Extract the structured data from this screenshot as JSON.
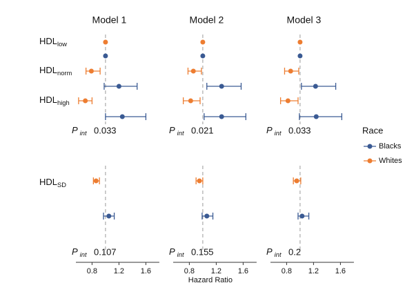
{
  "chart_data": {
    "type": "forest",
    "x_label": "Hazard Ratio",
    "legend_title": "Race",
    "xlim": [
      0.56,
      1.8
    ],
    "xticks": [
      0.8,
      1.2,
      1.6
    ],
    "reference": 1,
    "p_label": {
      "main": "P",
      "sub": "int"
    },
    "groups": [
      {
        "main": "HDL",
        "sub": "low"
      },
      {
        "main": "HDL",
        "sub": "norm"
      },
      {
        "main": "HDL",
        "sub": "high"
      },
      {
        "main": "HDL",
        "sub": "SD"
      }
    ],
    "series": [
      {
        "name": "Blacks",
        "color": "#3a5a93"
      },
      {
        "name": "Whites",
        "color": "#ed7d31"
      }
    ],
    "panels": [
      {
        "title": "Model 1",
        "p_int": [
          0.033,
          0.107
        ],
        "series": [
          {
            "values": [
              1,
              1.2,
              1.25,
              1.05
            ],
            "lower": [
              null,
              0.98,
              1.0,
              0.97
            ],
            "upper": [
              null,
              1.47,
              1.6,
              1.13
            ]
          },
          {
            "values": [
              1,
              0.79,
              0.7,
              0.86
            ],
            "lower": [
              null,
              0.71,
              0.6,
              0.82
            ],
            "upper": [
              null,
              0.92,
              0.8,
              0.91
            ]
          }
        ]
      },
      {
        "title": "Model 2",
        "p_int": [
          0.021,
          0.155
        ],
        "series": [
          {
            "values": [
              1,
              1.28,
              1.28,
              1.06
            ],
            "lower": [
              null,
              1.06,
              1.02,
              0.99
            ],
            "upper": [
              null,
              1.57,
              1.64,
              1.15
            ]
          },
          {
            "values": [
              1,
              0.86,
              0.82,
              0.95
            ],
            "lower": [
              null,
              0.78,
              0.71,
              0.9
            ],
            "upper": [
              null,
              0.98,
              0.96,
              1.0
            ]
          }
        ]
      },
      {
        "title": "Model 3",
        "p_int": [
          0.033,
          0.2
        ],
        "series": [
          {
            "values": [
              1,
              1.23,
              1.24,
              1.03
            ],
            "lower": [
              null,
              1.02,
              0.99,
              0.97
            ],
            "upper": [
              null,
              1.53,
              1.62,
              1.13
            ]
          },
          {
            "values": [
              1,
              0.86,
              0.82,
              0.95
            ],
            "lower": [
              null,
              0.77,
              0.71,
              0.9
            ],
            "upper": [
              null,
              0.98,
              0.97,
              1.01
            ]
          }
        ]
      }
    ]
  }
}
